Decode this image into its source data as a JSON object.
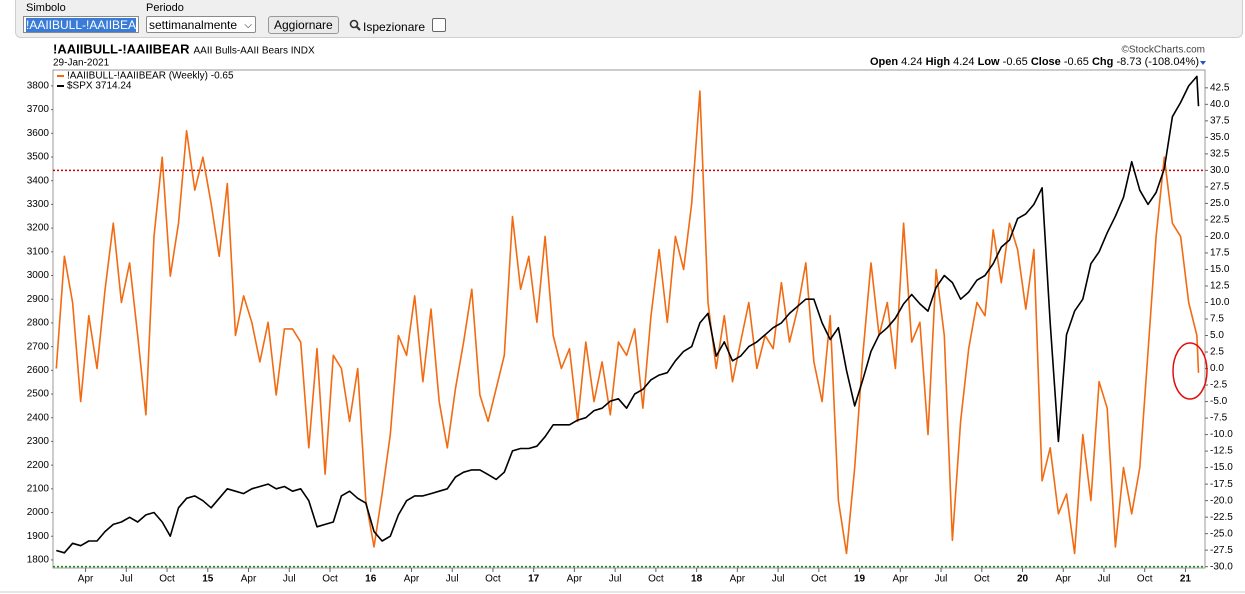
{
  "form": {
    "symbol_label": "Simbolo",
    "symbol_value": "!AAIIBULL-!AAIIBEA",
    "period_label": "Periodo",
    "period_value": "settimanalmente",
    "button": "Aggiornare",
    "inspect": "Ispezionare"
  },
  "chart_data": {
    "type": "line",
    "title": "!AAIIBULL-!AAIIBEAR",
    "subtitle": "AAII Bulls-AAII Bears INDX",
    "date": "29-Jan-2021",
    "source": "©StockCharts.com",
    "quote": [
      {
        "label": "Open",
        "value": 4.24
      },
      {
        "label": "High",
        "value": 4.24
      },
      {
        "label": "Low",
        "value": -0.65
      },
      {
        "label": "Close",
        "value": -0.65
      },
      {
        "label": "Chg",
        "value": -8.73
      }
    ],
    "quote_change_pct": "(-108.04%)",
    "x": [
      2014.07,
      2014.12,
      2014.17,
      2014.22,
      2014.27,
      2014.32,
      2014.37,
      2014.42,
      2014.47,
      2014.52,
      2014.57,
      2014.62,
      2014.67,
      2014.72,
      2014.77,
      2014.82,
      2014.87,
      2014.92,
      2014.97,
      2015.02,
      2015.07,
      2015.12,
      2015.17,
      2015.22,
      2015.27,
      2015.32,
      2015.37,
      2015.42,
      2015.47,
      2015.52,
      2015.57,
      2015.62,
      2015.67,
      2015.72,
      2015.77,
      2015.82,
      2015.87,
      2015.92,
      2015.97,
      2016.02,
      2016.07,
      2016.12,
      2016.17,
      2016.22,
      2016.27,
      2016.32,
      2016.37,
      2016.42,
      2016.47,
      2016.52,
      2016.57,
      2016.62,
      2016.67,
      2016.72,
      2016.77,
      2016.82,
      2016.87,
      2016.92,
      2016.97,
      2017.02,
      2017.07,
      2017.12,
      2017.17,
      2017.22,
      2017.27,
      2017.32,
      2017.37,
      2017.42,
      2017.47,
      2017.52,
      2017.57,
      2017.62,
      2017.67,
      2017.72,
      2017.77,
      2017.82,
      2017.87,
      2017.92,
      2017.97,
      2018.02,
      2018.07,
      2018.12,
      2018.17,
      2018.22,
      2018.27,
      2018.32,
      2018.37,
      2018.42,
      2018.47,
      2018.52,
      2018.57,
      2018.62,
      2018.67,
      2018.72,
      2018.77,
      2018.82,
      2018.87,
      2018.92,
      2018.97,
      2019.02,
      2019.07,
      2019.12,
      2019.17,
      2019.22,
      2019.27,
      2019.32,
      2019.37,
      2019.42,
      2019.47,
      2019.52,
      2019.57,
      2019.62,
      2019.67,
      2019.72,
      2019.77,
      2019.82,
      2019.87,
      2019.92,
      2019.97,
      2020.02,
      2020.07,
      2020.12,
      2020.17,
      2020.22,
      2020.27,
      2020.32,
      2020.37,
      2020.42,
      2020.47,
      2020.52,
      2020.57,
      2020.62,
      2020.67,
      2020.72,
      2020.77,
      2020.82,
      2020.87,
      2020.92,
      2020.97,
      2021.02,
      2021.07,
      2021.08
    ],
    "series": [
      {
        "name": "!AAIIBULL-!AAIIBEAR (Weekly) -0.65",
        "color": "#f26b12",
        "axis": "y2",
        "values": [
          0,
          17,
          10,
          -5,
          8,
          0,
          12,
          22,
          10,
          16,
          5,
          -7,
          20,
          32,
          14,
          22,
          36,
          27,
          32,
          25,
          17,
          28,
          5,
          11,
          7,
          1,
          7,
          -4,
          6,
          6,
          4,
          -12,
          3,
          -16,
          2,
          0,
          -8,
          0,
          -20,
          -27,
          -19,
          -10,
          5,
          2,
          11,
          -2,
          9,
          -5,
          -12,
          -3,
          4,
          12,
          -4,
          -8,
          -3,
          2,
          23,
          12,
          17,
          7,
          20,
          5,
          0,
          3,
          -8,
          4,
          -5,
          1,
          -7,
          4,
          2,
          6,
          -6,
          8,
          18,
          7,
          20,
          15,
          25,
          42,
          10,
          0,
          8,
          -2,
          4,
          10,
          0,
          5,
          3,
          13,
          4,
          9,
          16,
          1,
          -5,
          8,
          -20,
          -28,
          -15,
          2,
          16,
          5,
          10,
          0,
          22,
          4,
          7,
          -10,
          15,
          5,
          -26,
          -8,
          3,
          10,
          8,
          21,
          13,
          22,
          18,
          9,
          18,
          -17,
          -12,
          -22,
          -19,
          -28,
          -10,
          -20,
          -2,
          -6,
          -27,
          -15,
          -22,
          -15,
          2.5,
          20,
          32,
          22,
          20,
          10,
          5,
          -0.65
        ]
      },
      {
        "name": "$SPX 3714.24",
        "color": "#000000",
        "axis": "y",
        "values": [
          1840,
          1830,
          1870,
          1860,
          1880,
          1880,
          1920,
          1950,
          1960,
          1980,
          1960,
          1990,
          2000,
          1960,
          1900,
          2020,
          2060,
          2070,
          2050,
          2020,
          2060,
          2100,
          2090,
          2080,
          2100,
          2110,
          2120,
          2100,
          2110,
          2090,
          2100,
          2050,
          1940,
          1950,
          1960,
          2070,
          2090,
          2060,
          2040,
          1920,
          1880,
          1900,
          1990,
          2050,
          2070,
          2070,
          2080,
          2090,
          2100,
          2150,
          2170,
          2180,
          2180,
          2160,
          2140,
          2170,
          2260,
          2270,
          2270,
          2280,
          2320,
          2370,
          2370,
          2370,
          2390,
          2400,
          2430,
          2440,
          2470,
          2480,
          2440,
          2500,
          2520,
          2560,
          2580,
          2590,
          2640,
          2680,
          2700,
          2800,
          2840,
          2660,
          2720,
          2640,
          2660,
          2700,
          2720,
          2750,
          2780,
          2800,
          2840,
          2870,
          2900,
          2900,
          2800,
          2730,
          2780,
          2600,
          2450,
          2560,
          2680,
          2750,
          2780,
          2820,
          2880,
          2920,
          2880,
          2850,
          2950,
          3000,
          2970,
          2900,
          2930,
          2980,
          3000,
          3050,
          3120,
          3150,
          3240,
          3260,
          3300,
          3370,
          2800,
          2300,
          2750,
          2850,
          2900,
          3050,
          3100,
          3180,
          3250,
          3330,
          3480,
          3360,
          3300,
          3350,
          3450,
          3670,
          3730,
          3800,
          3840,
          3714.24
        ]
      }
    ],
    "xlim": [
      2014.05,
      2021.12
    ],
    "xticks": [
      {
        "value": 2014.25,
        "label": "Apr"
      },
      {
        "value": 2014.5,
        "label": "Jul"
      },
      {
        "value": 2014.75,
        "label": "Oct"
      },
      {
        "value": 2015,
        "label": "15"
      },
      {
        "value": 2015.25,
        "label": "Apr"
      },
      {
        "value": 2015.5,
        "label": "Jul"
      },
      {
        "value": 2015.75,
        "label": "Oct"
      },
      {
        "value": 2016,
        "label": "16"
      },
      {
        "value": 2016.25,
        "label": "Apr"
      },
      {
        "value": 2016.5,
        "label": "Jul"
      },
      {
        "value": 2016.75,
        "label": "Oct"
      },
      {
        "value": 2017,
        "label": "17"
      },
      {
        "value": 2017.25,
        "label": "Apr"
      },
      {
        "value": 2017.5,
        "label": "Jul"
      },
      {
        "value": 2017.75,
        "label": "Oct"
      },
      {
        "value": 2018,
        "label": "18"
      },
      {
        "value": 2018.25,
        "label": "Apr"
      },
      {
        "value": 2018.5,
        "label": "Jul"
      },
      {
        "value": 2018.75,
        "label": "Oct"
      },
      {
        "value": 2019,
        "label": "19"
      },
      {
        "value": 2019.25,
        "label": "Apr"
      },
      {
        "value": 2019.5,
        "label": "Jul"
      },
      {
        "value": 2019.75,
        "label": "Oct"
      },
      {
        "value": 2020,
        "label": "20"
      },
      {
        "value": 2020.25,
        "label": "Apr"
      },
      {
        "value": 2020.5,
        "label": "Jul"
      },
      {
        "value": 2020.75,
        "label": "Oct"
      },
      {
        "value": 2021,
        "label": "21"
      }
    ],
    "ylim": [
      1766,
      3867
    ],
    "yticks": [
      1800,
      1900,
      2000,
      2100,
      2200,
      2300,
      2400,
      2500,
      2600,
      2700,
      2800,
      2900,
      3000,
      3100,
      3200,
      3300,
      3400,
      3500,
      3600,
      3700,
      3800
    ],
    "y2lim": [
      -30.2,
      45.2
    ],
    "y2ticks": [
      42.5,
      {
        "value": 40,
        "label": "40.0"
      },
      37.5,
      {
        "value": 35,
        "label": "35.0"
      },
      32.5,
      {
        "value": 30,
        "label": "30.0"
      },
      27.5,
      {
        "value": 25,
        "label": "25.0"
      },
      22.5,
      {
        "value": 20,
        "label": "20.0"
      },
      17.5,
      {
        "value": 15,
        "label": "15.0"
      },
      12.5,
      {
        "value": 10,
        "label": "10.0"
      },
      7.5,
      {
        "value": 5,
        "label": "5.0"
      },
      2.5,
      {
        "value": 0,
        "label": "0.0"
      },
      -2.5,
      {
        "value": -5,
        "label": "-5.0"
      },
      -7.5,
      {
        "value": -10,
        "label": "-10.0"
      },
      -12.5,
      {
        "value": -15,
        "label": "-15.0"
      },
      -17.5,
      {
        "value": -20,
        "label": "-20.0"
      },
      -22.5,
      {
        "value": -25,
        "label": "-25.0"
      },
      -27.5,
      {
        "value": -30,
        "label": "-30.0"
      }
    ],
    "reference_lines": [
      {
        "value": 30,
        "axis": "y2",
        "color": "#cc0000"
      },
      {
        "value": -30,
        "axis": "y2",
        "color": "#1a8a1a"
      }
    ],
    "grid": false,
    "legend": "top-left"
  }
}
